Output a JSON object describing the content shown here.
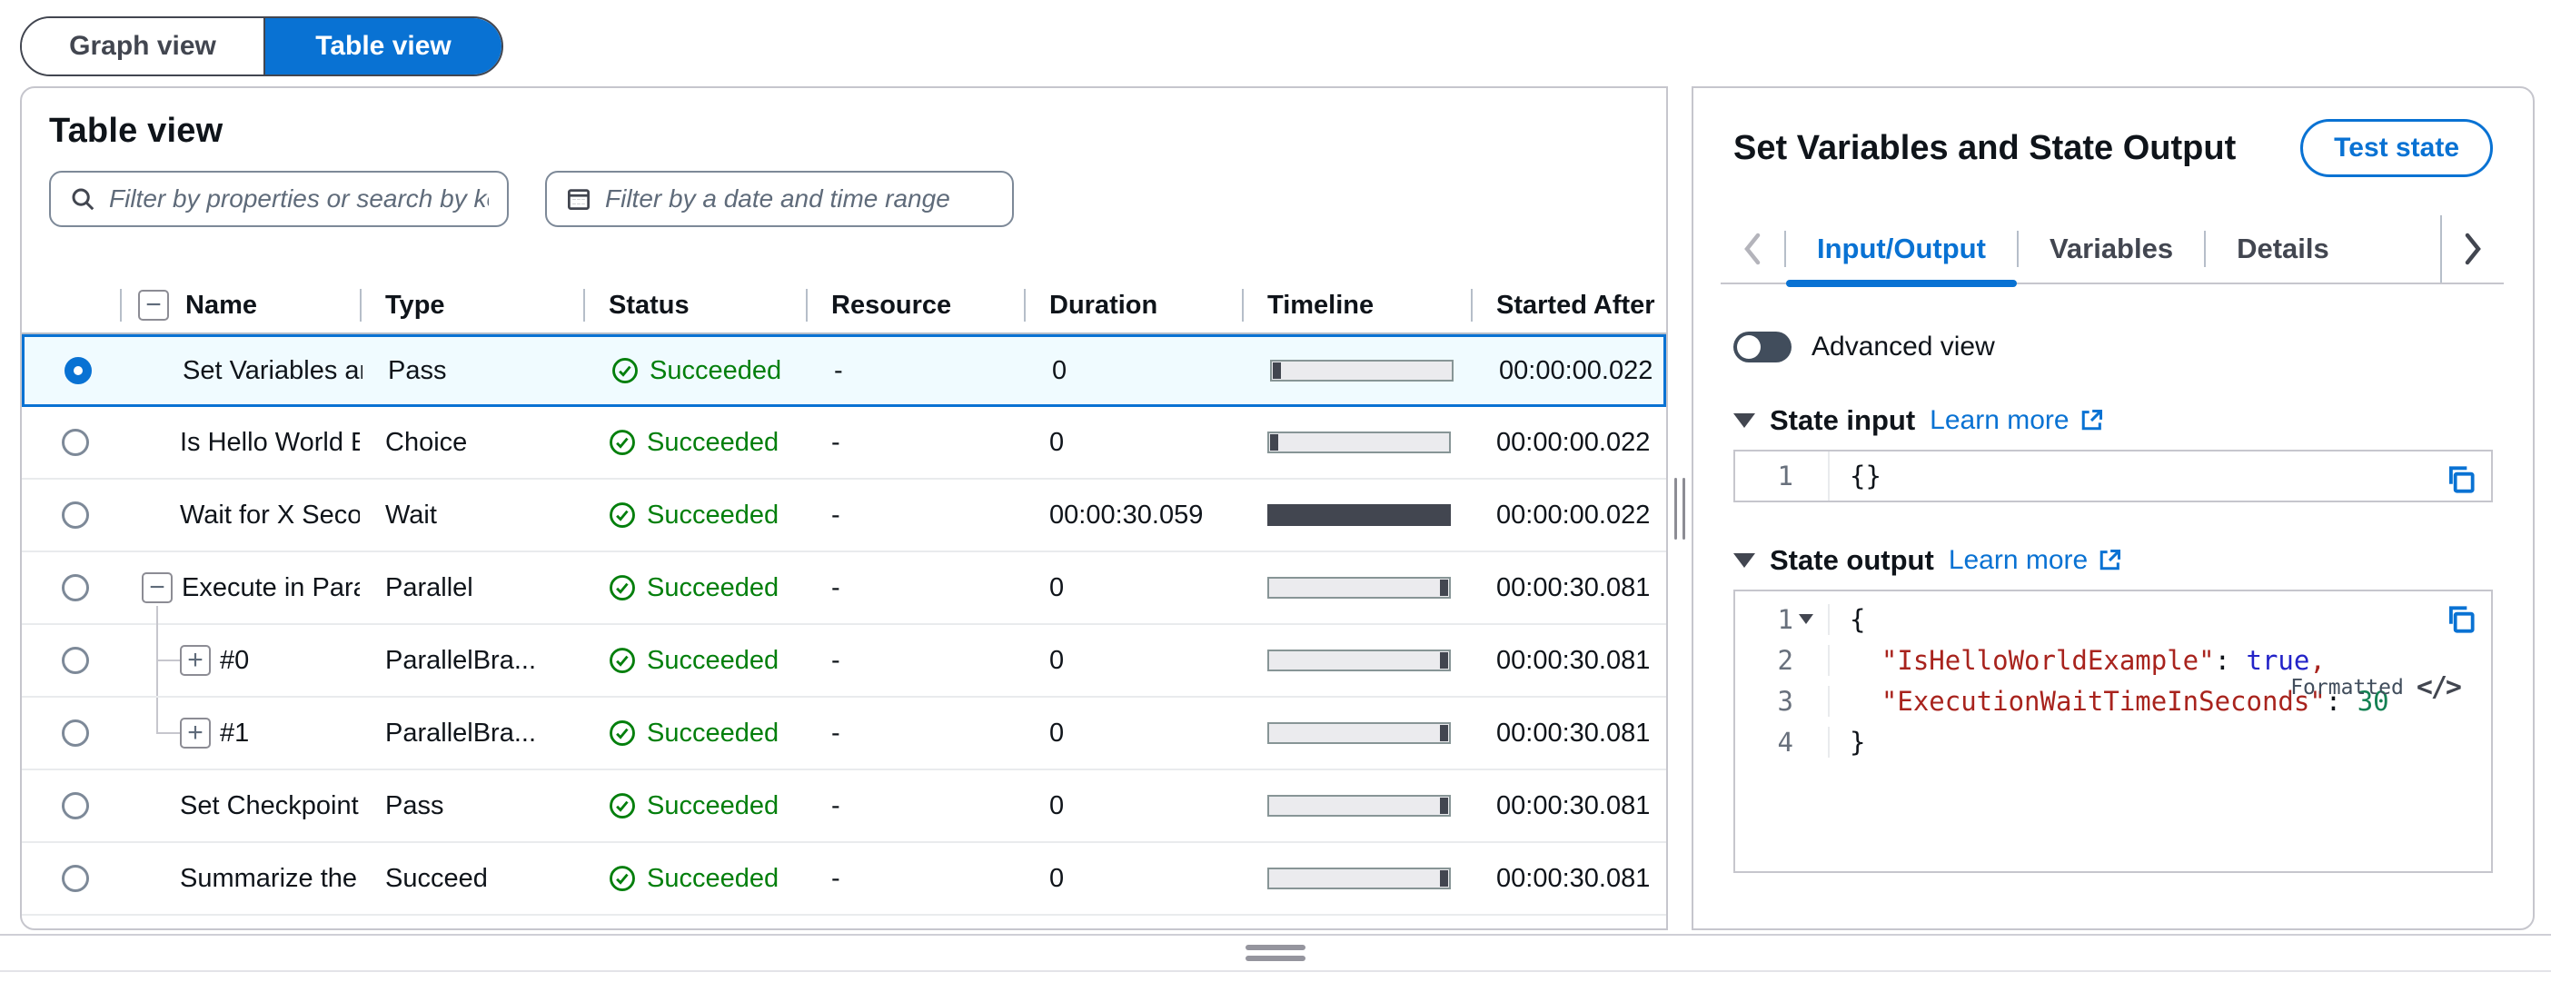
{
  "colors": {
    "accent": "#0972d3",
    "success": "#037f0c",
    "selected_row_bg": "#f0fbff",
    "code_key": "#a8231d",
    "code_boolean": "#2323c8",
    "code_number": "#148153"
  },
  "view_toggle": {
    "graph_label": "Graph view",
    "table_label": "Table view",
    "selected": "Table view"
  },
  "table_panel": {
    "title": "Table view",
    "property_filter_placeholder": "Filter by properties or search by keyword",
    "date_filter_placeholder": "Filter by a date and time range",
    "columns": [
      "Name",
      "Type",
      "Status",
      "Resource",
      "Duration",
      "Timeline",
      "Started After"
    ],
    "rows": [
      {
        "name": "Set Variables ar",
        "type": "Pass",
        "status": "Succeeded",
        "resource": "-",
        "duration": "0",
        "timeline": "start",
        "started_after": "00:00:00.022",
        "selected": true,
        "role": "top"
      },
      {
        "name": "Is Hello World E",
        "type": "Choice",
        "status": "Succeeded",
        "resource": "-",
        "duration": "0",
        "timeline": "start",
        "started_after": "00:00:00.022",
        "selected": false,
        "role": "top"
      },
      {
        "name": "Wait for X Secon",
        "type": "Wait",
        "status": "Succeeded",
        "resource": "-",
        "duration": "00:00:30.059",
        "timeline": "full",
        "started_after": "00:00:00.022",
        "selected": false,
        "role": "top"
      },
      {
        "name": "Execute in Para",
        "type": "Parallel",
        "status": "Succeeded",
        "resource": "-",
        "duration": "0",
        "timeline": "end",
        "started_after": "00:00:30.081",
        "selected": false,
        "role": "parent",
        "expander": "minus"
      },
      {
        "name": "#0",
        "type": "ParallelBra...",
        "status": "Succeeded",
        "resource": "-",
        "duration": "0",
        "timeline": "end",
        "started_after": "00:00:30.081",
        "selected": false,
        "role": "child",
        "expander": "plus"
      },
      {
        "name": "#1",
        "type": "ParallelBra...",
        "status": "Succeeded",
        "resource": "-",
        "duration": "0",
        "timeline": "end",
        "started_after": "00:00:30.081",
        "selected": false,
        "role": "child-last",
        "expander": "plus"
      },
      {
        "name": "Set Checkpoint",
        "type": "Pass",
        "status": "Succeeded",
        "resource": "-",
        "duration": "0",
        "timeline": "end",
        "started_after": "00:00:30.081",
        "selected": false,
        "role": "top"
      },
      {
        "name": "Summarize the",
        "type": "Succeed",
        "status": "Succeeded",
        "resource": "-",
        "duration": "0",
        "timeline": "end",
        "started_after": "00:00:30.081",
        "selected": false,
        "role": "top"
      }
    ]
  },
  "detail_panel": {
    "title": "Set Variables and State Output",
    "test_state_button": "Test state",
    "tabs": [
      {
        "label": "Input/Output",
        "active": true
      },
      {
        "label": "Variables",
        "active": false
      },
      {
        "label": "Details",
        "active": false
      }
    ],
    "advanced_view_label": "Advanced view",
    "state_input": {
      "heading": "State input",
      "learn_more_label": "Learn more",
      "lines": [
        {
          "num": "1",
          "fold": false,
          "tokens": [
            {
              "text": "{}",
              "type": "plain"
            }
          ]
        }
      ]
    },
    "state_output": {
      "heading": "State output",
      "learn_more_label": "Learn more",
      "formatted_label": "Formatted",
      "code_toggle_icon": "</>",
      "lines": [
        {
          "num": "1",
          "fold": true,
          "tokens": [
            {
              "text": "{",
              "type": "plain"
            }
          ]
        },
        {
          "num": "2",
          "fold": false,
          "tokens": [
            {
              "text": "  ",
              "type": "plain"
            },
            {
              "text": "\"IsHelloWorldExample\"",
              "type": "key"
            },
            {
              "text": ": ",
              "type": "plain"
            },
            {
              "text": "true",
              "type": "boolean"
            },
            {
              "text": ",",
              "type": "key"
            }
          ]
        },
        {
          "num": "3",
          "fold": false,
          "tokens": [
            {
              "text": "  ",
              "type": "plain"
            },
            {
              "text": "\"ExecutionWaitTimeInSeconds\"",
              "type": "key"
            },
            {
              "text": ": ",
              "type": "plain"
            },
            {
              "text": "30",
              "type": "number"
            }
          ]
        },
        {
          "num": "4",
          "fold": false,
          "tokens": [
            {
              "text": "}",
              "type": "plain"
            }
          ]
        }
      ]
    }
  }
}
